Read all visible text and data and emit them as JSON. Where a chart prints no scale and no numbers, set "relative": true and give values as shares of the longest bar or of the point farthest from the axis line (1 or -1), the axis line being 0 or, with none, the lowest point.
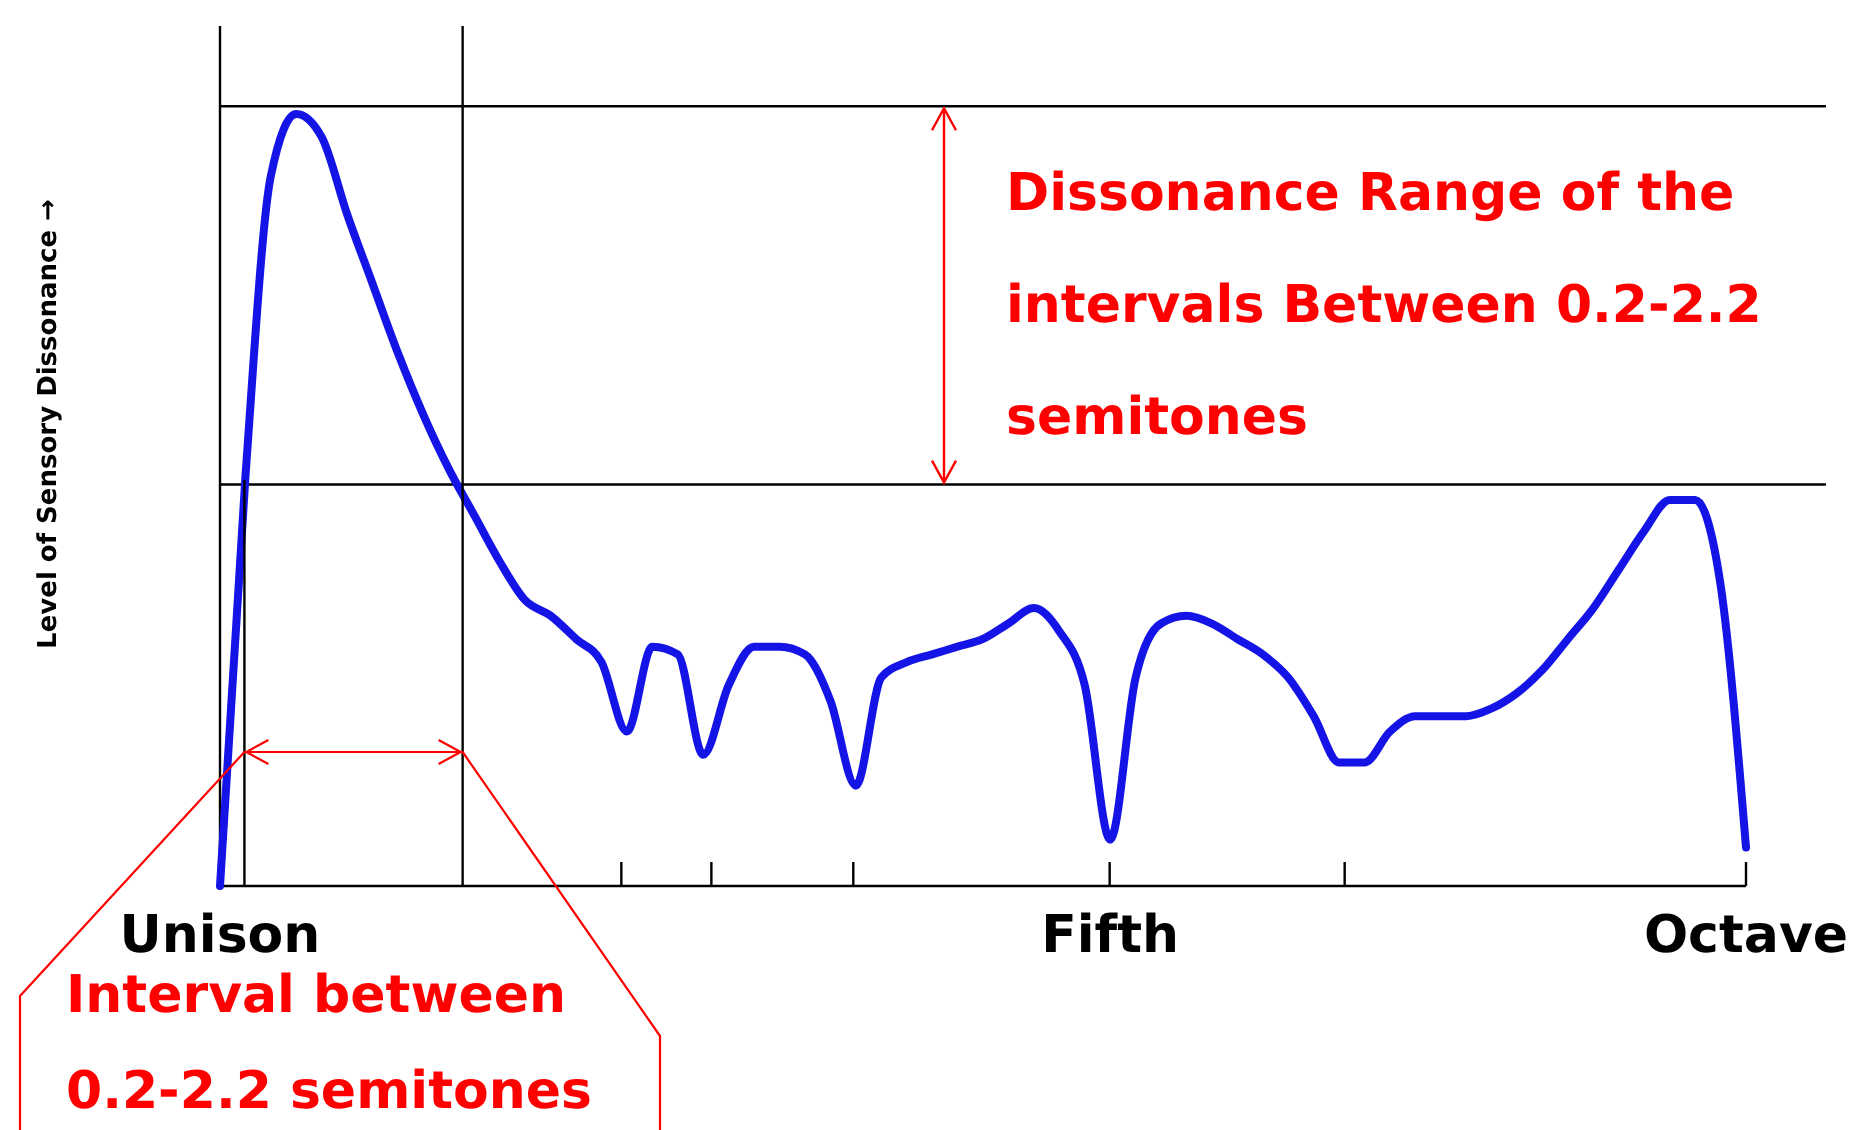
{
  "chart_data": {
    "type": "line",
    "ylabel": "Level of Sensory Dissonance →",
    "relative": true,
    "color": "#1414e6",
    "annotations": [
      "Dissonance Range of the intervals Between 0.2-2.2 semitones",
      "Interval between 0.2-2.2 semitones"
    ],
    "categories": [
      "Unison",
      null,
      null,
      null,
      null,
      null,
      null,
      null,
      null,
      null,
      null,
      null,
      null,
      null,
      null,
      null,
      null,
      null,
      null,
      null,
      null,
      null,
      null,
      null,
      null,
      null,
      null,
      null,
      null,
      null,
      null,
      null,
      null,
      null,
      null,
      "Fifth",
      null,
      null,
      null,
      null,
      null,
      null,
      null,
      null,
      null,
      null,
      null,
      null,
      null,
      null,
      null,
      null,
      null,
      null,
      null,
      null,
      null,
      null,
      null,
      null,
      "Octave"
    ],
    "ref_lines": [
      {
        "axis": "y",
        "value": 1.01,
        "color": "#000000"
      },
      {
        "axis": "y",
        "value": 0.52,
        "color": "#000000"
      }
    ],
    "values": [
      0,
      0.53,
      0.92,
      1.0,
      0.97,
      0.87,
      0.78,
      0.69,
      0.61,
      0.54,
      0.48,
      0.42,
      0.37,
      0.35,
      0.32,
      0.29,
      0.2,
      0.31,
      0.3,
      0.17,
      0.26,
      0.31,
      0.31,
      0.3,
      0.24,
      0.13,
      0.27,
      0.29,
      0.3,
      0.31,
      0.32,
      0.34,
      0.36,
      0.33,
      0.26,
      0.06,
      0.27,
      0.34,
      0.35,
      0.34,
      0.32,
      0.3,
      0.27,
      0.22,
      0.16,
      0.16,
      0.2,
      0.22,
      0.22,
      0.22,
      0.23,
      0.25,
      0.28,
      0.32,
      0.36,
      0.41,
      0.46,
      0.5,
      0.5,
      0.39,
      0.05
    ]
  }
}
